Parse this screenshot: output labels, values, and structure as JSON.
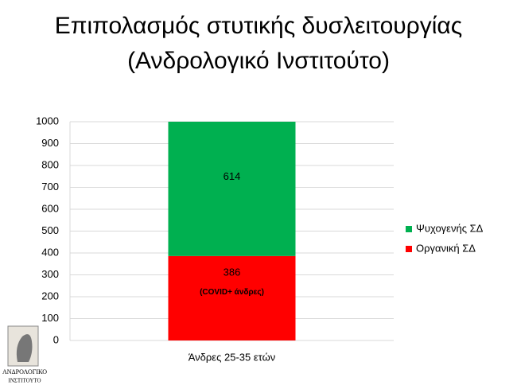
{
  "chart_data": {
    "type": "stacked_bar",
    "title": [
      "Επιπολασμός στυτικής δυσλειτουργίας",
      "(Ανδρολογικό Ινστιτούτο)"
    ],
    "categories": [
      "Άνδρες 25-35 ετών"
    ],
    "series": [
      {
        "name": "Οργανική ΣΔ",
        "color": "#ff0000",
        "values": [
          386
        ]
      },
      {
        "name": "Ψυχογενής ΣΔ",
        "color": "#00b050",
        "values": [
          614
        ]
      }
    ],
    "annotation": "(COVID+ άνδρες)",
    "ylim": [
      0,
      1000
    ],
    "yticks": [
      0,
      100,
      200,
      300,
      400,
      500,
      600,
      700,
      800,
      900,
      1000
    ],
    "grid": true,
    "legend": "right"
  },
  "logo": {
    "lines": [
      "ΑΝΔΡΟΛΟΓΙΚΟ",
      "ΙΝΣΤΙΤΟΥΤΟ"
    ]
  }
}
